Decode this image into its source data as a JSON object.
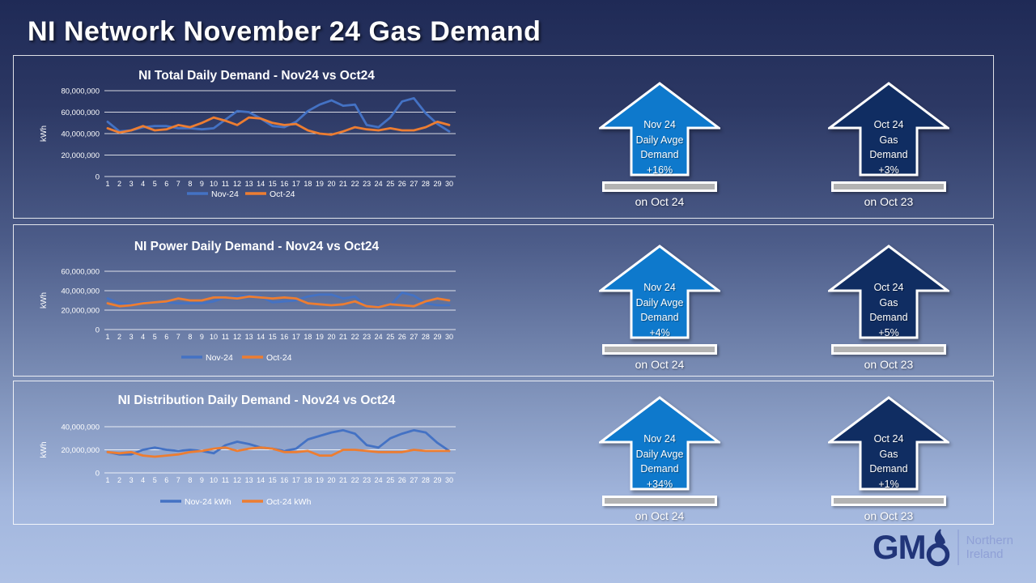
{
  "page": {
    "title": "NI Network November 24 Gas Demand"
  },
  "colors": {
    "background_top": "#1F2A56",
    "background_bottom": "#AEC1E5",
    "nov_line": "#4472C4",
    "oct_line": "#ED7D31",
    "nov_arrow_fill": "#0E79CC",
    "oct_arrow_fill": "#102D62",
    "base_bar_grey": "#B3B3B3",
    "panel_border": "#FFFFFF",
    "logo_navy": "#213579",
    "logo_lavender": "#8FA0D6"
  },
  "panels": [
    {
      "name": "total",
      "arrows": [
        {
          "variant": "nov",
          "lines": [
            "Nov 24",
            "Daily Avge",
            "Demand",
            "+16%"
          ],
          "base_label": "on Oct 24"
        },
        {
          "variant": "oct",
          "lines": [
            "Oct 24",
            "Gas",
            "Demand",
            "+3%"
          ],
          "base_label": "on Oct 23"
        }
      ]
    },
    {
      "name": "power",
      "arrows": [
        {
          "variant": "nov",
          "lines": [
            "Nov 24",
            "Daily Avge",
            "Demand",
            "+4%"
          ],
          "base_label": "on Oct 24"
        },
        {
          "variant": "oct",
          "lines": [
            "Oct 24",
            "Gas",
            "Demand",
            "+5%"
          ],
          "base_label": "on Oct 23"
        }
      ]
    },
    {
      "name": "distribution",
      "arrows": [
        {
          "variant": "nov",
          "lines": [
            "Nov 24",
            "Daily Avge",
            "Demand",
            "+34%"
          ],
          "base_label": "on Oct 24"
        },
        {
          "variant": "oct",
          "lines": [
            "Oct 24",
            "Gas",
            "Demand",
            "+1%"
          ],
          "base_label": "on Oct 23"
        }
      ]
    }
  ],
  "chart_data": [
    {
      "type": "line",
      "title": "NI Total Daily Demand - Nov24 vs Oct24",
      "xlabel": "",
      "ylabel": "kWh",
      "ylim": [
        0,
        80000000
      ],
      "yticks": [
        0,
        20000000,
        40000000,
        60000000,
        80000000
      ],
      "grid": true,
      "legend_position": "bottom",
      "x": [
        1,
        2,
        3,
        4,
        5,
        6,
        7,
        8,
        9,
        10,
        11,
        12,
        13,
        14,
        15,
        16,
        17,
        18,
        19,
        20,
        21,
        22,
        23,
        24,
        25,
        26,
        27,
        28,
        29,
        30
      ],
      "series": [
        {
          "name": "Nov-24",
          "color": "#4472C4",
          "values": [
            51000000,
            42000000,
            43000000,
            46000000,
            47000000,
            47000000,
            45000000,
            45000000,
            44000000,
            45000000,
            53000000,
            61000000,
            60000000,
            54000000,
            47000000,
            46000000,
            51000000,
            61000000,
            67000000,
            71000000,
            66000000,
            67000000,
            48000000,
            46000000,
            55000000,
            70000000,
            73000000,
            59000000,
            49000000,
            42000000
          ]
        },
        {
          "name": "Oct-24",
          "color": "#ED7D31",
          "values": [
            45000000,
            41000000,
            43000000,
            47000000,
            43000000,
            44000000,
            48000000,
            46000000,
            50000000,
            55000000,
            52000000,
            48000000,
            55000000,
            54000000,
            50000000,
            48000000,
            49000000,
            43000000,
            40000000,
            39000000,
            42000000,
            46000000,
            44000000,
            43000000,
            45000000,
            43000000,
            43000000,
            46000000,
            51000000,
            48000000
          ]
        }
      ]
    },
    {
      "type": "line",
      "title": "NI Power Daily Demand - Nov24 vs Oct24",
      "xlabel": "",
      "ylabel": "kWh",
      "ylim": [
        0,
        60000000
      ],
      "yticks": [
        0,
        20000000,
        40000000,
        60000000
      ],
      "grid": true,
      "legend_position": "bottom",
      "x": [
        1,
        2,
        3,
        4,
        5,
        6,
        7,
        8,
        9,
        10,
        11,
        12,
        13,
        14,
        15,
        16,
        17,
        18,
        19,
        20,
        21,
        22,
        23,
        24,
        25,
        26,
        27,
        28,
        29,
        30
      ],
      "series": [
        {
          "name": "Nov-24",
          "color": "#4472C4",
          "values": [
            32000000,
            27000000,
            26000000,
            28000000,
            28000000,
            28000000,
            27000000,
            27000000,
            27000000,
            29000000,
            33000000,
            34000000,
            35000000,
            34000000,
            28000000,
            29000000,
            30000000,
            34000000,
            36000000,
            36000000,
            32000000,
            34000000,
            24000000,
            24000000,
            25000000,
            38000000,
            35000000,
            27000000,
            25000000,
            25000000
          ]
        },
        {
          "name": "Oct-24",
          "color": "#ED7D31",
          "values": [
            27000000,
            24000000,
            25000000,
            27000000,
            28000000,
            29000000,
            32000000,
            30000000,
            30000000,
            33000000,
            33000000,
            32000000,
            34000000,
            33000000,
            32000000,
            33000000,
            32000000,
            27000000,
            26000000,
            25000000,
            26000000,
            29000000,
            24000000,
            23000000,
            26000000,
            25000000,
            24000000,
            29000000,
            32000000,
            30000000
          ]
        }
      ]
    },
    {
      "type": "line",
      "title": "NI Distribution Daily Demand - Nov24 vs Oct24",
      "xlabel": "",
      "ylabel": "kWh",
      "ylim": [
        0,
        40000000
      ],
      "yticks": [
        0,
        20000000,
        40000000
      ],
      "grid": true,
      "legend_position": "bottom",
      "x": [
        1,
        2,
        3,
        4,
        5,
        6,
        7,
        8,
        9,
        10,
        11,
        12,
        13,
        14,
        15,
        16,
        17,
        18,
        19,
        20,
        21,
        22,
        23,
        24,
        25,
        26,
        27,
        28,
        29,
        30
      ],
      "series": [
        {
          "name": "Nov-24 kWh",
          "color": "#4472C4",
          "values": [
            18000000,
            16000000,
            16000000,
            20000000,
            22000000,
            20000000,
            19000000,
            20000000,
            19000000,
            17000000,
            24000000,
            27000000,
            25000000,
            22000000,
            21000000,
            19000000,
            21000000,
            29000000,
            32000000,
            35000000,
            37000000,
            34000000,
            24000000,
            22000000,
            30000000,
            34000000,
            37000000,
            35000000,
            26000000,
            19000000
          ]
        },
        {
          "name": "Oct-24 kWh",
          "color": "#ED7D31",
          "values": [
            18000000,
            17000000,
            18000000,
            15000000,
            14000000,
            15000000,
            16000000,
            18000000,
            19000000,
            21000000,
            22000000,
            19000000,
            21000000,
            22000000,
            21000000,
            18000000,
            18000000,
            19000000,
            15000000,
            15000000,
            20000000,
            20000000,
            19000000,
            18000000,
            18000000,
            18000000,
            20000000,
            19000000,
            19000000,
            19000000
          ]
        }
      ]
    }
  ],
  "logo": {
    "brand_gm": "GM",
    "region_line1": "Northern",
    "region_line2": "Ireland"
  }
}
